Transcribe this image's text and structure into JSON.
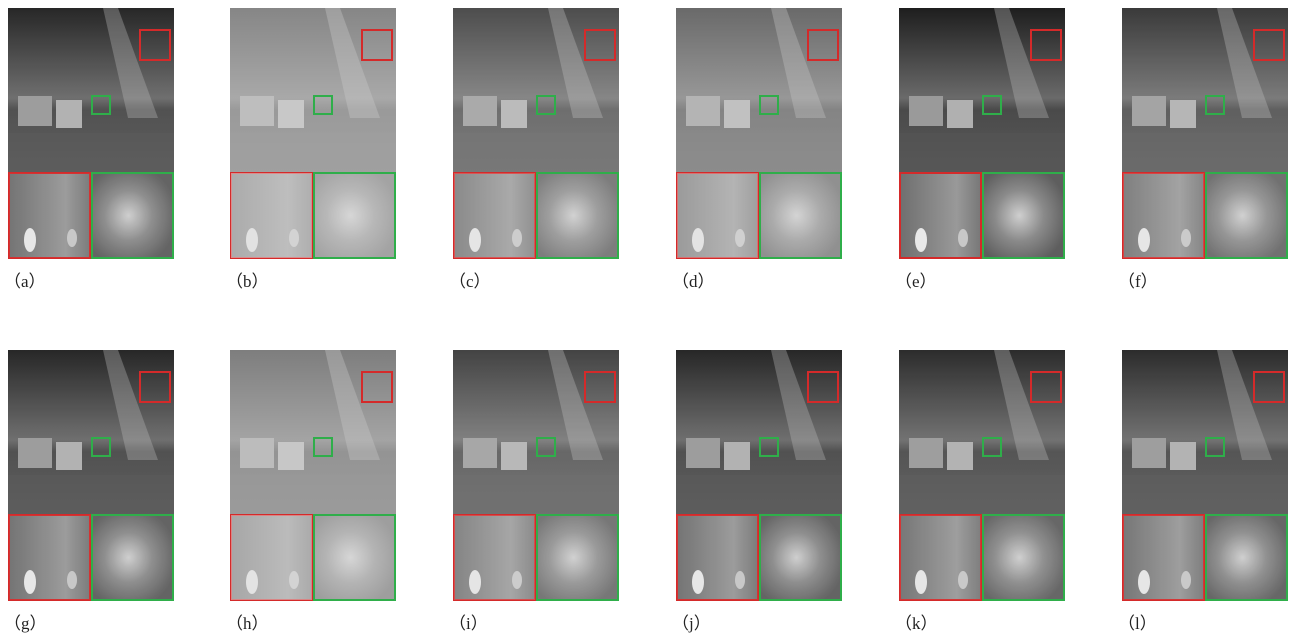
{
  "panels": [
    {
      "label": "（a）"
    },
    {
      "label": "（b）"
    },
    {
      "label": "（c）"
    },
    {
      "label": "（d）"
    },
    {
      "label": "（e）"
    },
    {
      "label": "（f）"
    },
    {
      "label": "（g）"
    },
    {
      "label": "（h）"
    },
    {
      "label": "（i）"
    },
    {
      "label": "（j）"
    },
    {
      "label": "（k）"
    },
    {
      "label": "（l）"
    }
  ]
}
